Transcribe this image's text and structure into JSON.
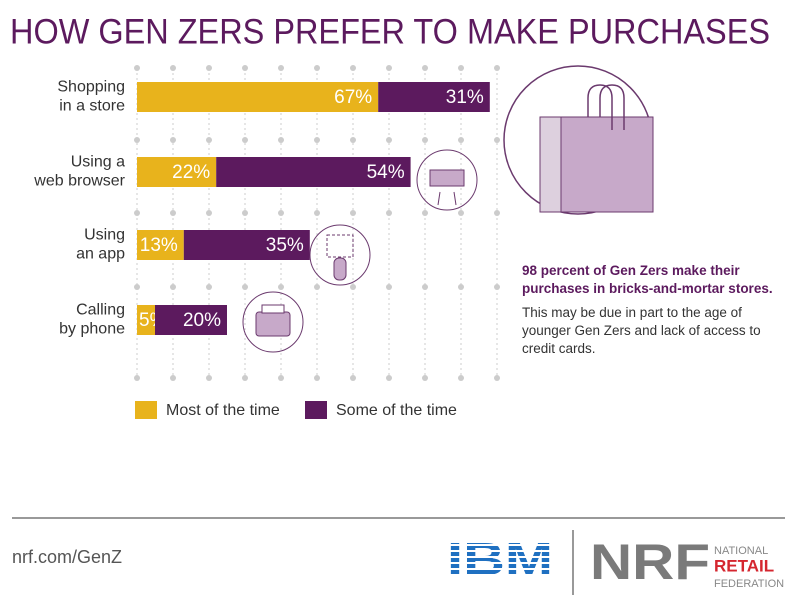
{
  "chart_data": {
    "type": "stacked-bar-horizontal",
    "title": "HOW GEN ZERS PREFER TO MAKE PURCHASES",
    "categories": [
      "Shopping\nin a store",
      "Using a\nweb browser",
      "Using\nan app",
      "Calling\nby phone"
    ],
    "series": [
      {
        "name": "Most of the time",
        "color": "#e8b31c",
        "values": [
          67,
          22,
          13,
          5
        ],
        "value_labels": [
          "67%",
          "22%",
          "13%",
          "5%"
        ]
      },
      {
        "name": "Some of the time",
        "color": "#5c1a5e",
        "values": [
          31,
          54,
          35,
          20
        ],
        "value_labels": [
          "31%",
          "54%",
          "35%",
          "20%"
        ]
      }
    ],
    "xlim": [
      0,
      100
    ],
    "xticks": [
      0,
      10,
      20,
      30,
      40,
      50,
      60,
      70,
      80,
      90,
      100
    ],
    "grid": true
  },
  "callout": {
    "headline": "98 percent of Gen Zers make their purchases in bricks-and-mortar stores.",
    "body": "This may be due in part to the age of younger Gen Zers and lack of access to credit cards."
  },
  "footer": {
    "url": "nrf.com/GenZ",
    "logo_ibm": "IBM",
    "logo_nrf": "NRF",
    "nrf_line1": "NATIONAL",
    "nrf_line2": "RETAIL",
    "nrf_line3": "FEDERATION"
  }
}
